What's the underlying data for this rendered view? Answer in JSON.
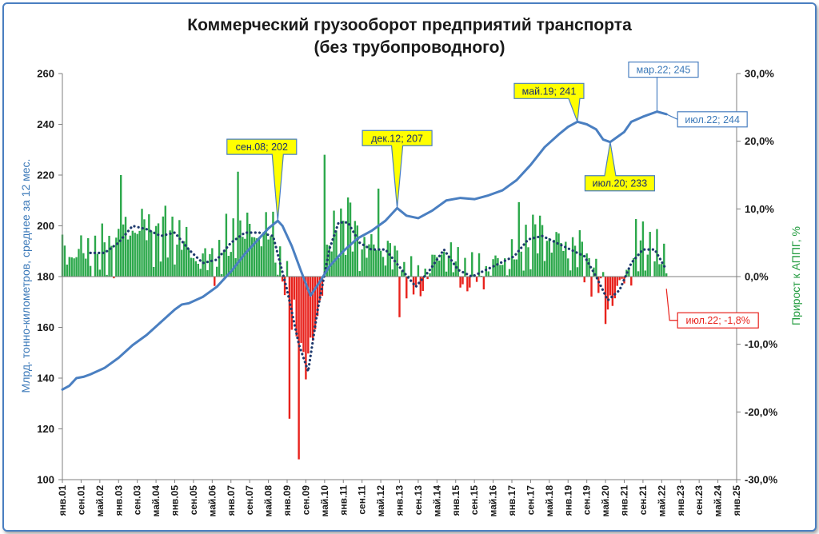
{
  "chart_data": {
    "type": "bar+line",
    "title_lines": [
      "Коммерческий грузооборот предприятий транспорта",
      "(без трубопроводного)"
    ],
    "ylabel_left": "Млрд. тонно-километров, среднее за 12 мес.",
    "ylabel_right": "Прирост к АППГ, %",
    "ylim_left": [
      100,
      260
    ],
    "ylim_right": [
      -30,
      30
    ],
    "yticks_left": [
      "100",
      "120",
      "140",
      "160",
      "180",
      "200",
      "220",
      "240",
      "260"
    ],
    "yticks_right": [
      "-30,0%",
      "-20,0%",
      "-10,0%",
      "0,0%",
      "10,0%",
      "20,0%",
      "30,0%"
    ],
    "x_range": [
      "2001-01",
      "2025-01"
    ],
    "xticks": [
      "янв.01",
      "сен.01",
      "май.02",
      "янв.03",
      "сен.03",
      "май.04",
      "янв.05",
      "сен.05",
      "май.06",
      "янв.07",
      "сен.07",
      "май.08",
      "янв.09",
      "сен.09",
      "май.10",
      "янв.11",
      "сен.11",
      "май.12",
      "янв.13",
      "сен.13",
      "май.14",
      "янв.15",
      "сен.15",
      "май.16",
      "янв.17",
      "сен.17",
      "май.18",
      "янв.19",
      "сен.19",
      "май.20",
      "янв.21",
      "сен.21",
      "май.22",
      "янв.23",
      "сен.23",
      "май.24",
      "янв.25"
    ],
    "series": [
      {
        "kind": "line",
        "axis": "left",
        "color": "#4a7fc1",
        "points": [
          [
            "2001-01",
            135.5
          ],
          [
            "2001-04",
            137
          ],
          [
            "2001-07",
            140
          ],
          [
            "2001-10",
            140.5
          ],
          [
            "2002-01",
            141.5
          ],
          [
            "2002-07",
            144
          ],
          [
            "2003-01",
            148
          ],
          [
            "2003-07",
            153
          ],
          [
            "2004-01",
            157
          ],
          [
            "2004-07",
            162
          ],
          [
            "2005-01",
            167
          ],
          [
            "2005-04",
            169
          ],
          [
            "2005-07",
            169.5
          ],
          [
            "2006-01",
            172
          ],
          [
            "2006-07",
            176
          ],
          [
            "2007-01",
            182
          ],
          [
            "2007-07",
            189
          ],
          [
            "2008-01",
            195
          ],
          [
            "2008-05",
            199
          ],
          [
            "2008-09",
            202
          ],
          [
            "2008-11",
            200
          ],
          [
            "2009-03",
            192
          ],
          [
            "2009-07",
            182
          ],
          [
            "2009-11",
            172.5
          ],
          [
            "2010-03",
            178
          ],
          [
            "2010-07",
            184
          ],
          [
            "2011-01",
            190
          ],
          [
            "2011-07",
            195
          ],
          [
            "2012-01",
            198
          ],
          [
            "2012-07",
            202
          ],
          [
            "2012-12",
            207
          ],
          [
            "2013-04",
            204
          ],
          [
            "2013-09",
            203
          ],
          [
            "2014-03",
            206
          ],
          [
            "2014-09",
            210
          ],
          [
            "2015-03",
            211
          ],
          [
            "2015-09",
            210.5
          ],
          [
            "2016-03",
            212
          ],
          [
            "2016-09",
            214
          ],
          [
            "2017-03",
            218
          ],
          [
            "2017-09",
            224
          ],
          [
            "2018-03",
            231
          ],
          [
            "2018-09",
            236
          ],
          [
            "2019-01",
            239
          ],
          [
            "2019-05",
            241
          ],
          [
            "2019-09",
            240
          ],
          [
            "2020-01",
            238
          ],
          [
            "2020-04",
            234
          ],
          [
            "2020-07",
            233
          ],
          [
            "2020-10",
            235
          ],
          [
            "2021-01",
            237
          ],
          [
            "2021-04",
            241
          ],
          [
            "2021-09",
            243
          ],
          [
            "2022-03",
            245
          ],
          [
            "2022-07",
            244
          ]
        ]
      },
      {
        "kind": "dotted-line",
        "axis": "right",
        "color": "#1f3a6e",
        "points": [
          [
            "2002-01",
            3.5
          ],
          [
            "2002-07",
            3.5
          ],
          [
            "2003-01",
            5
          ],
          [
            "2003-07",
            7.5
          ],
          [
            "2004-01",
            7
          ],
          [
            "2004-07",
            6
          ],
          [
            "2005-01",
            6.5
          ],
          [
            "2005-07",
            4
          ],
          [
            "2006-01",
            2
          ],
          [
            "2006-07",
            2.5
          ],
          [
            "2007-01",
            5
          ],
          [
            "2007-07",
            6.5
          ],
          [
            "2008-01",
            6.5
          ],
          [
            "2008-07",
            6
          ],
          [
            "2009-01",
            -2
          ],
          [
            "2009-06",
            -10
          ],
          [
            "2009-10",
            -14
          ],
          [
            "2010-02",
            -5
          ],
          [
            "2010-07",
            4
          ],
          [
            "2010-11",
            8
          ],
          [
            "2011-03",
            8
          ],
          [
            "2011-08",
            5
          ],
          [
            "2012-01",
            4
          ],
          [
            "2012-07",
            4
          ],
          [
            "2013-02",
            1
          ],
          [
            "2013-08",
            -1.5
          ],
          [
            "2014-02",
            1
          ],
          [
            "2014-08",
            4
          ],
          [
            "2015-02",
            1
          ],
          [
            "2015-08",
            0
          ],
          [
            "2016-02",
            1
          ],
          [
            "2016-08",
            2
          ],
          [
            "2017-02",
            3
          ],
          [
            "2017-08",
            5.5
          ],
          [
            "2018-02",
            6
          ],
          [
            "2018-08",
            5
          ],
          [
            "2019-02",
            4
          ],
          [
            "2019-08",
            3
          ],
          [
            "2020-01",
            0
          ],
          [
            "2020-06",
            -3.5
          ],
          [
            "2020-11",
            -2
          ],
          [
            "2021-04",
            2
          ],
          [
            "2021-09",
            4
          ],
          [
            "2022-02",
            4
          ],
          [
            "2022-07",
            1
          ]
        ]
      },
      {
        "kind": "bar",
        "axis": "right",
        "color_positive": "#2ca84b",
        "color_negative": "#e8221c",
        "start": "2001-01",
        "end": "2022-07",
        "extremes": [
          [
            "2003-02",
            15
          ],
          [
            "2007-04",
            15.5
          ],
          [
            "2009-06",
            -27
          ],
          [
            "2009-02",
            -21
          ],
          [
            "2010-05",
            18
          ],
          [
            "2012-04",
            13
          ],
          [
            "2013-01",
            -6
          ],
          [
            "2017-04",
            11
          ],
          [
            "2020-05",
            -7
          ],
          [
            "2021-06",
            8.5
          ]
        ]
      }
    ],
    "annotations": [
      {
        "text": "сен.08; 202",
        "style": "yellow",
        "point": [
          "2008-09",
          202
        ]
      },
      {
        "text": "дек.12; 207",
        "style": "yellow",
        "point": [
          "2012-12",
          207
        ]
      },
      {
        "text": "май.19; 241",
        "style": "yellow",
        "point": [
          "2019-05",
          241
        ]
      },
      {
        "text": "июл.20; 233",
        "style": "yellow",
        "point": [
          "2020-07",
          233
        ]
      },
      {
        "text": "мар.22; 245",
        "style": "blue",
        "point": [
          "2022-03",
          245
        ]
      },
      {
        "text": "июл.22; 244",
        "style": "blue",
        "point": [
          "2022-07",
          244
        ]
      },
      {
        "text": "июл.22; -1,8%",
        "style": "red",
        "point": [
          "2022-07",
          -1.8
        ]
      }
    ],
    "colors": {
      "frame": "#4a7fc1",
      "callout_yellow": "#ffff00",
      "callout_yellow_border": "#4a7fc1",
      "callout_yellow_text": "#1a2f6b",
      "callout_blue_text": "#3a78b8",
      "callout_red_text": "#e8221c"
    },
    "grid": false
  }
}
